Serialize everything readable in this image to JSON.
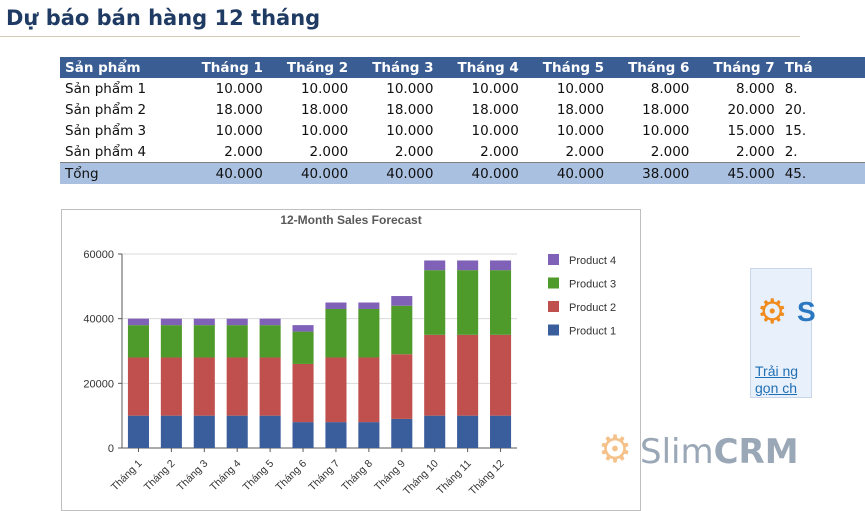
{
  "title": "Dự báo bán hàng 12 tháng",
  "table": {
    "headers": [
      "Sản phẩm",
      "Tháng 1",
      "Tháng 2",
      "Tháng 3",
      "Tháng 4",
      "Tháng 5",
      "Tháng 6",
      "Tháng 7",
      "Thá"
    ],
    "rows": [
      [
        "Sản phẩm 1",
        "10.000",
        "10.000",
        "10.000",
        "10.000",
        "10.000",
        "8.000",
        "8.000",
        "8."
      ],
      [
        "Sản phẩm 2",
        "18.000",
        "18.000",
        "18.000",
        "18.000",
        "18.000",
        "18.000",
        "20.000",
        "20."
      ],
      [
        "Sản phẩm 3",
        "10.000",
        "10.000",
        "10.000",
        "10.000",
        "10.000",
        "10.000",
        "15.000",
        "15."
      ],
      [
        "Sản phẩm 4",
        "2.000",
        "2.000",
        "2.000",
        "2.000",
        "2.000",
        "2.000",
        "2.000",
        "2."
      ]
    ],
    "total": [
      "Tổng",
      "40.000",
      "40.000",
      "40.000",
      "40.000",
      "40.000",
      "38.000",
      "45.000",
      "45."
    ]
  },
  "chart_data": {
    "type": "bar",
    "stacked": true,
    "title": "12-Month Sales Forecast",
    "categories": [
      "Tháng 1",
      "Tháng 2",
      "Tháng 3",
      "Tháng 4",
      "Tháng 5",
      "Tháng 6",
      "Tháng 7",
      "Tháng 8",
      "Tháng 9",
      "Tháng 10",
      "Tháng 11",
      "Tháng 12"
    ],
    "series": [
      {
        "name": "Product 1",
        "color": "#3a5d9c",
        "values": [
          10000,
          10000,
          10000,
          10000,
          10000,
          8000,
          8000,
          8000,
          9000,
          10000,
          10000,
          10000
        ]
      },
      {
        "name": "Product 2",
        "color": "#c0504d",
        "values": [
          18000,
          18000,
          18000,
          18000,
          18000,
          18000,
          20000,
          20000,
          20000,
          25000,
          25000,
          25000
        ]
      },
      {
        "name": "Product 3",
        "color": "#4e9a2a",
        "values": [
          10000,
          10000,
          10000,
          10000,
          10000,
          10000,
          15000,
          15000,
          15000,
          20000,
          20000,
          20000
        ]
      },
      {
        "name": "Product 4",
        "color": "#7f62b8",
        "values": [
          2000,
          2000,
          2000,
          2000,
          2000,
          2000,
          2000,
          2000,
          3000,
          3000,
          3000,
          3000
        ]
      }
    ],
    "yticks": [
      0,
      20000,
      40000,
      60000
    ],
    "ytick_labels": [
      "0",
      "20000",
      "40000",
      "60000"
    ],
    "ylim": [
      0,
      60000
    ],
    "grid": true,
    "legend": "right"
  },
  "ad": {
    "letter": "S",
    "link1": "Trải ng",
    "link2": "gọn ch",
    "icon": "gear-icon"
  },
  "watermark": {
    "slim": "Slim",
    "crm": "CRM",
    "icon": "gear-icon"
  }
}
